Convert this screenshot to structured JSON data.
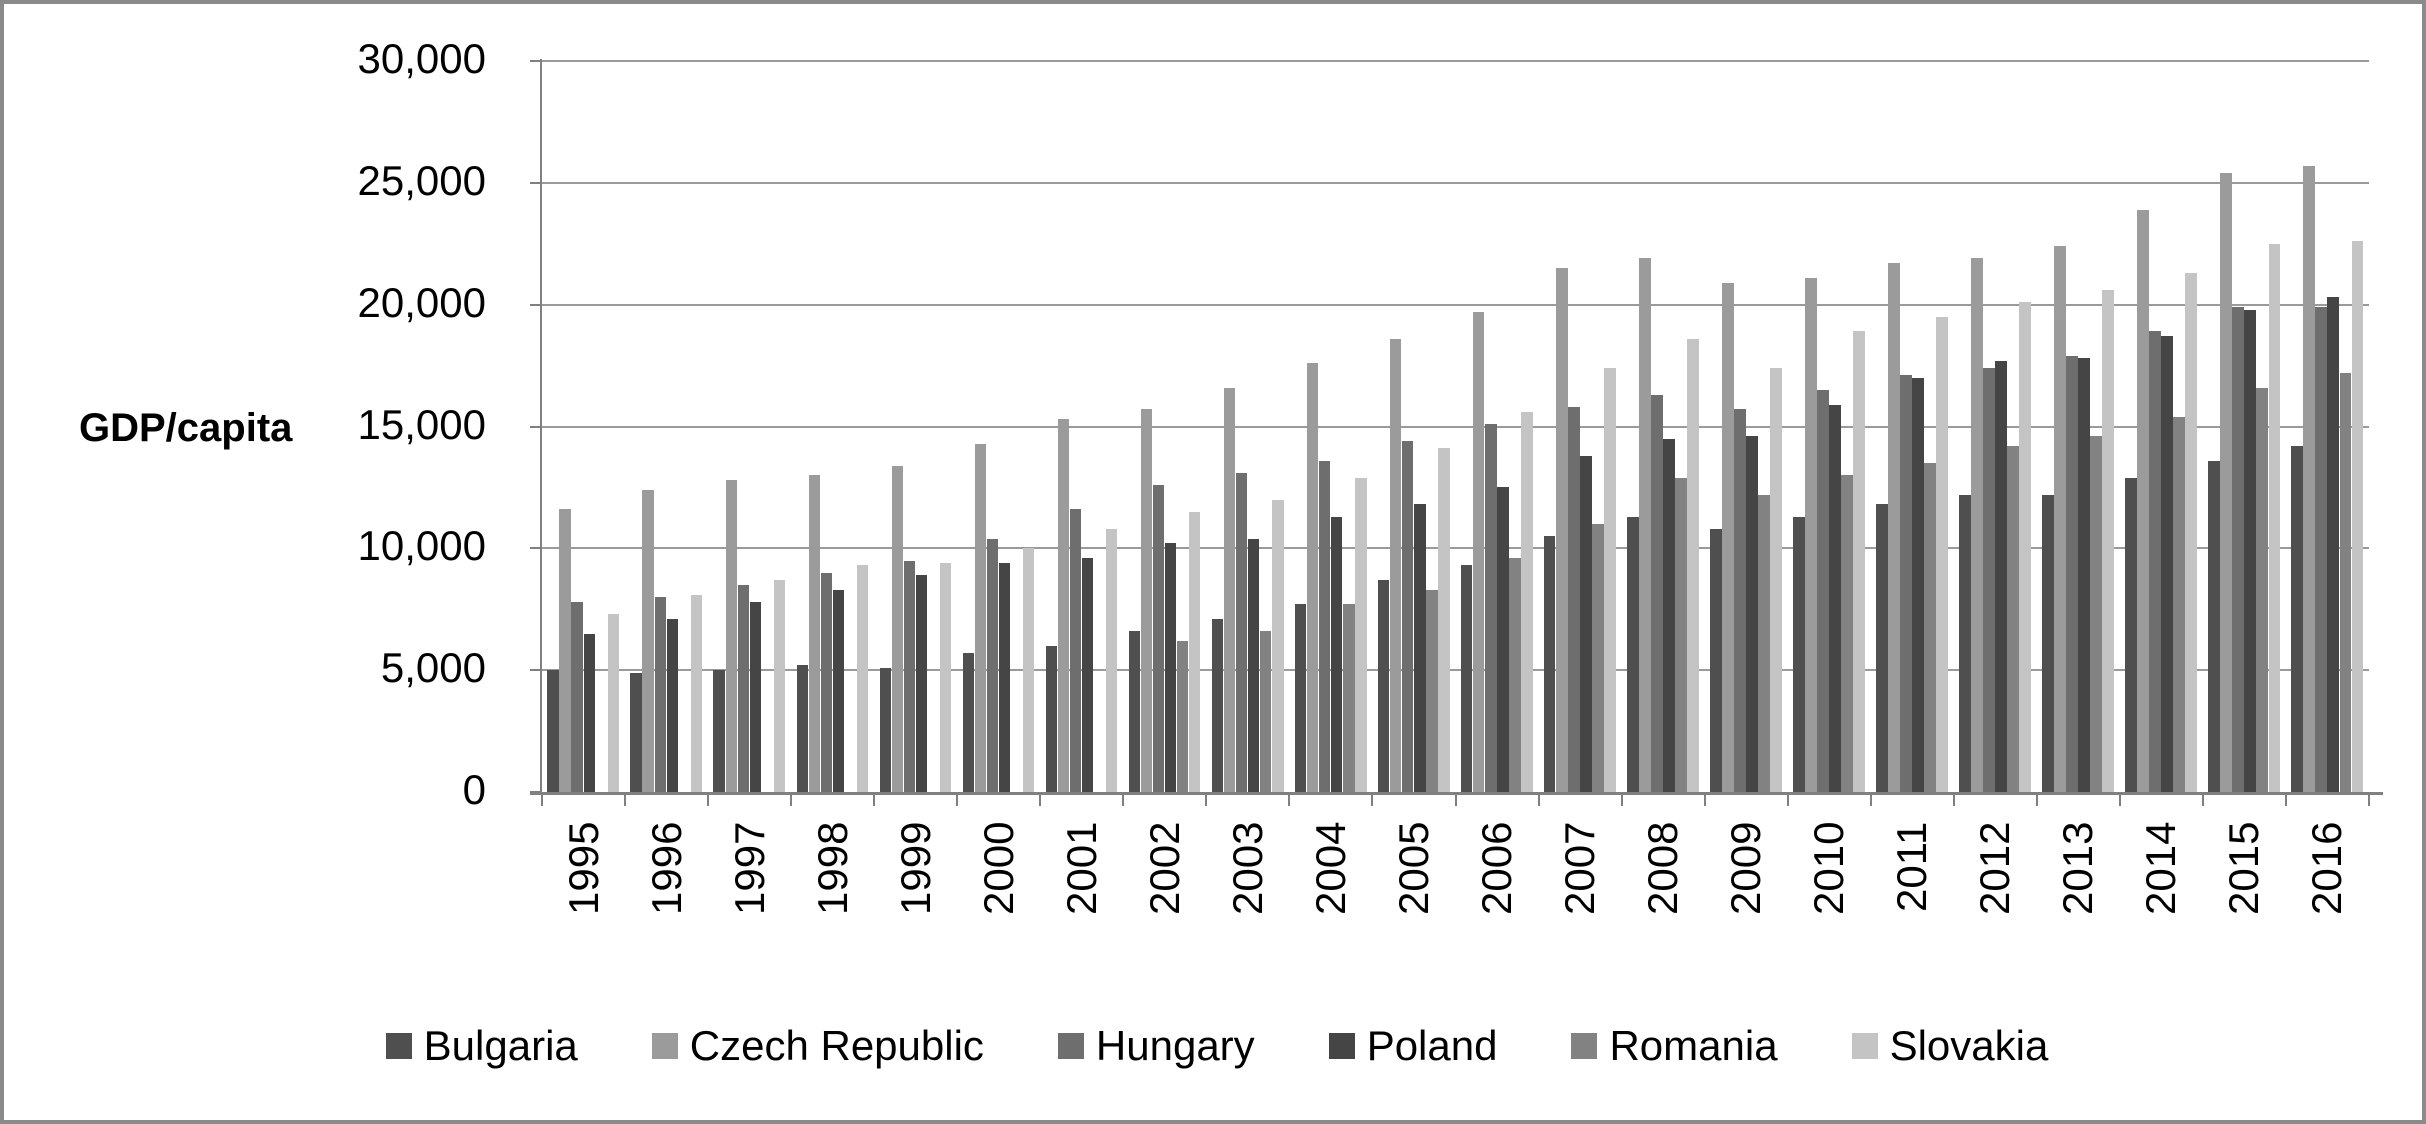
{
  "figure": {
    "ylabel": "GDP/capita",
    "background": "#ffffff",
    "border_color": "#8a8a8a",
    "gridline_color": "#9a9a9a",
    "axis_color": "#808080"
  },
  "y_axis": {
    "min": 0,
    "max": 30000,
    "step": 5000,
    "tick_labels": [
      "0",
      "5,000",
      "10,000",
      "15,000",
      "20,000",
      "25,000",
      "30,000"
    ]
  },
  "chart_data": {
    "type": "bar",
    "title": "",
    "xlabel": "",
    "ylabel": "GDP/capita",
    "ylim": [
      0,
      30000
    ],
    "grid": true,
    "legend_position": "bottom",
    "categories": [
      "1995",
      "1996",
      "1997",
      "1998",
      "1999",
      "2000",
      "2001",
      "2002",
      "2003",
      "2004",
      "2005",
      "2006",
      "2007",
      "2008",
      "2009",
      "2010",
      "2011",
      "2012",
      "2013",
      "2014",
      "2015",
      "2016"
    ],
    "series": [
      {
        "name": "Bulgaria",
        "color": "#4f4f4f",
        "values": [
          5000,
          4900,
          5000,
          5200,
          5100,
          5700,
          6000,
          6600,
          7100,
          7700,
          8700,
          9300,
          10500,
          11300,
          10800,
          11300,
          11800,
          12200,
          12200,
          12900,
          13600,
          14200
        ]
      },
      {
        "name": "Czech Republic",
        "color": "#9b9b9b",
        "values": [
          11600,
          12400,
          12800,
          13000,
          13400,
          14300,
          15300,
          15700,
          16600,
          17600,
          18600,
          19700,
          21500,
          21900,
          20900,
          21100,
          21700,
          21900,
          22400,
          23900,
          25400,
          25700
        ]
      },
      {
        "name": "Hungary",
        "color": "#6e6e6e",
        "values": [
          7800,
          8000,
          8500,
          9000,
          9500,
          10400,
          11600,
          12600,
          13100,
          13600,
          14400,
          15100,
          15800,
          16300,
          15700,
          16500,
          17100,
          17400,
          17900,
          18900,
          19900,
          19900
        ]
      },
      {
        "name": "Poland",
        "color": "#454545",
        "values": [
          6500,
          7100,
          7800,
          8300,
          8900,
          9400,
          9600,
          10200,
          10400,
          11300,
          11800,
          12500,
          13800,
          14500,
          14600,
          15900,
          17000,
          17700,
          17800,
          18700,
          19800,
          20300
        ]
      },
      {
        "name": "Romania",
        "color": "#828282",
        "values": [
          null,
          null,
          null,
          null,
          null,
          null,
          null,
          6200,
          6600,
          7700,
          8300,
          9600,
          11000,
          12900,
          12200,
          13000,
          13500,
          14200,
          14600,
          15400,
          16600,
          17200
        ]
      },
      {
        "name": "Slovakia",
        "color": "#c4c4c4",
        "values": [
          7300,
          8100,
          8700,
          9300,
          9400,
          10000,
          10800,
          11500,
          12000,
          12900,
          14100,
          15600,
          17400,
          18600,
          17400,
          18900,
          19500,
          20100,
          20600,
          21300,
          22500,
          22600
        ]
      }
    ]
  }
}
